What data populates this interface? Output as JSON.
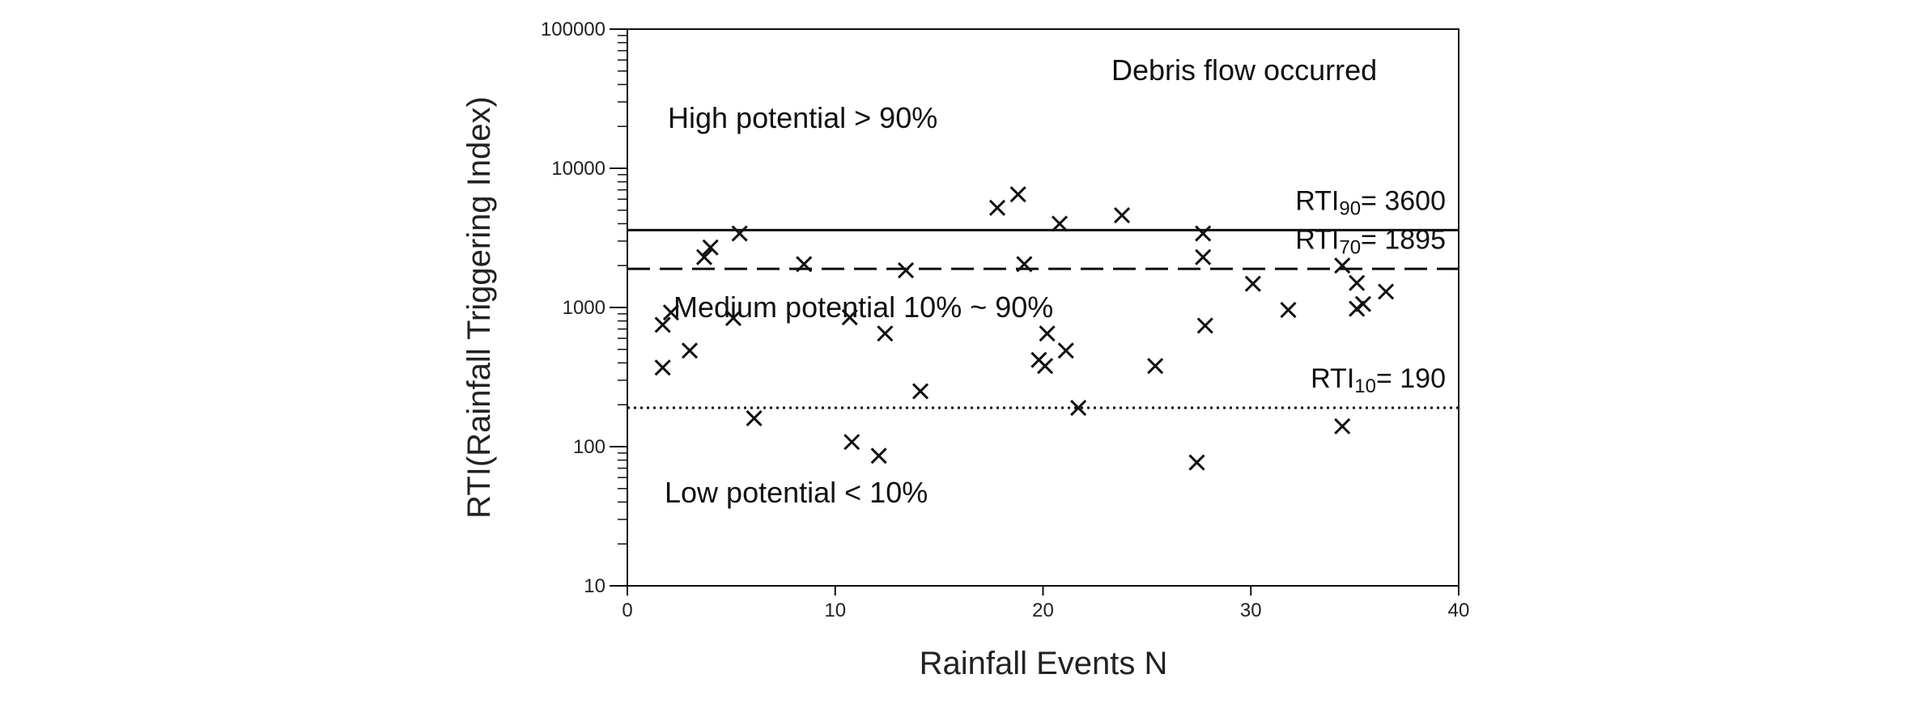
{
  "chart_data": {
    "type": "scatter",
    "title": "",
    "xlabel": "Rainfall Events N",
    "ylabel": "RTI(Rainfall Triggering Index)",
    "xlim": [
      0,
      40
    ],
    "ylim": [
      10,
      100000
    ],
    "yscale": "log",
    "x_ticks": [
      0,
      10,
      20,
      30,
      40
    ],
    "x_tick_labels": [
      "0",
      "10",
      "20",
      "30",
      "40"
    ],
    "y_ticks": [
      10,
      100,
      1000,
      10000,
      100000
    ],
    "y_tick_labels": [
      "10",
      "100",
      "1000",
      "10000",
      "100000"
    ],
    "marker": "x",
    "points": [
      {
        "x": 1.7,
        "y": 370
      },
      {
        "x": 1.7,
        "y": 750
      },
      {
        "x": 2.1,
        "y": 920
      },
      {
        "x": 3.0,
        "y": 490
      },
      {
        "x": 3.7,
        "y": 2300
      },
      {
        "x": 4.0,
        "y": 2700
      },
      {
        "x": 5.1,
        "y": 840
      },
      {
        "x": 5.4,
        "y": 3400
      },
      {
        "x": 6.1,
        "y": 160
      },
      {
        "x": 8.5,
        "y": 2050
      },
      {
        "x": 10.7,
        "y": 850
      },
      {
        "x": 10.8,
        "y": 108
      },
      {
        "x": 12.1,
        "y": 86
      },
      {
        "x": 12.4,
        "y": 650
      },
      {
        "x": 13.4,
        "y": 1850
      },
      {
        "x": 14.1,
        "y": 250
      },
      {
        "x": 17.8,
        "y": 5200
      },
      {
        "x": 18.8,
        "y": 6500
      },
      {
        "x": 19.1,
        "y": 2050
      },
      {
        "x": 19.8,
        "y": 420
      },
      {
        "x": 20.1,
        "y": 380
      },
      {
        "x": 20.2,
        "y": 650
      },
      {
        "x": 20.8,
        "y": 4000
      },
      {
        "x": 21.1,
        "y": 490
      },
      {
        "x": 21.7,
        "y": 190
      },
      {
        "x": 23.8,
        "y": 4600
      },
      {
        "x": 25.4,
        "y": 380
      },
      {
        "x": 27.4,
        "y": 77
      },
      {
        "x": 27.7,
        "y": 3400
      },
      {
        "x": 27.7,
        "y": 2300
      },
      {
        "x": 27.8,
        "y": 740
      },
      {
        "x": 30.1,
        "y": 1480
      },
      {
        "x": 31.8,
        "y": 960
      },
      {
        "x": 34.4,
        "y": 2000
      },
      {
        "x": 34.4,
        "y": 140
      },
      {
        "x": 35.1,
        "y": 1500
      },
      {
        "x": 35.1,
        "y": 980
      },
      {
        "x": 35.4,
        "y": 1060
      },
      {
        "x": 36.5,
        "y": 1300
      }
    ],
    "reference_lines": [
      {
        "name": "RTI90",
        "prefix": "RTI",
        "subscript": "90",
        "value_text": "= 3600",
        "value": 3600,
        "style": "solid"
      },
      {
        "name": "RTI70",
        "prefix": "RTI",
        "subscript": "70",
        "value_text": "= 1895",
        "value": 1895,
        "style": "dashed"
      },
      {
        "name": "RTI10",
        "prefix": "RTI",
        "subscript": "10",
        "value_text": "= 190",
        "value": 190,
        "style": "dotted"
      }
    ],
    "annotations": {
      "debris": "Debris flow occurred",
      "high": "High potential > 90%",
      "medium": "Medium potential 10% ~ 90%",
      "low": "Low potential < 10%"
    }
  }
}
